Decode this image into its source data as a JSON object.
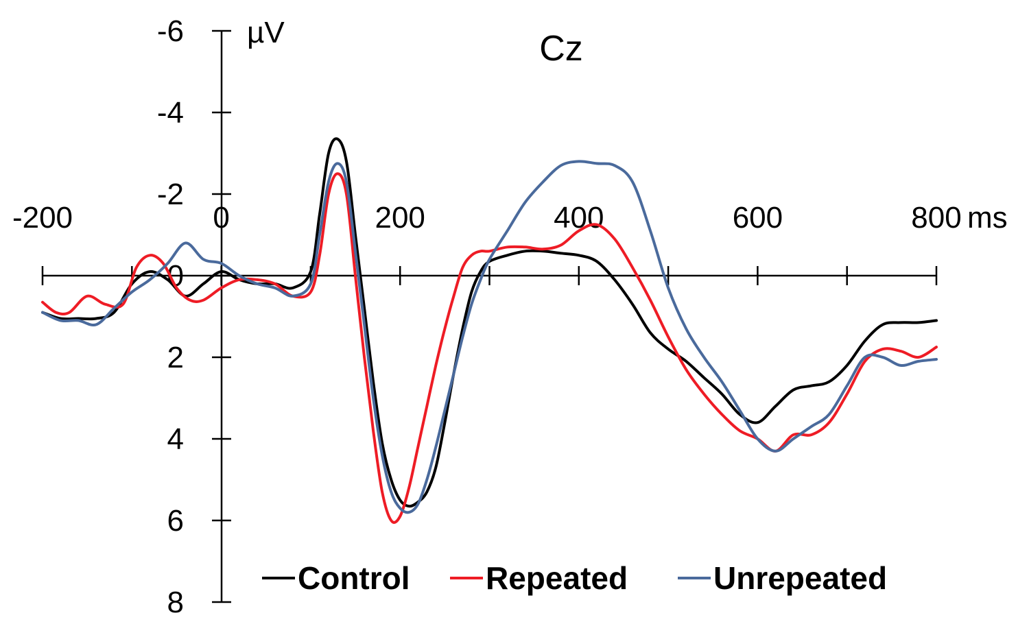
{
  "chart_data": {
    "type": "line",
    "title": "Cz",
    "xlabel": "ms",
    "ylabel": "µV",
    "xlim": [
      -200,
      800
    ],
    "ylim": [
      -6,
      8
    ],
    "y_inverted": true,
    "grid": false,
    "legend_position": "bottom",
    "x_ticks": [
      -200,
      0,
      200,
      400,
      600,
      800
    ],
    "x_tick_labels": [
      "-200",
      "0",
      "200",
      "400",
      "600",
      "800"
    ],
    "y_ticks": [
      -6,
      -4,
      -2,
      0,
      2,
      4,
      6,
      8
    ],
    "y_tick_labels": [
      "-6",
      "-4",
      "-2",
      "0",
      "2",
      "4",
      "6",
      "8"
    ],
    "series": [
      {
        "name": "Control",
        "color": "#000000",
        "x": [
          -200,
          -180,
          -160,
          -140,
          -120,
          -100,
          -80,
          -60,
          -40,
          -20,
          0,
          20,
          40,
          60,
          80,
          100,
          110,
          120,
          130,
          140,
          150,
          160,
          170,
          180,
          190,
          200,
          210,
          220,
          230,
          240,
          250,
          260,
          270,
          280,
          290,
          300,
          320,
          340,
          360,
          380,
          400,
          420,
          440,
          460,
          480,
          500,
          520,
          540,
          560,
          580,
          600,
          620,
          640,
          660,
          680,
          700,
          720,
          740,
          760,
          780,
          800
        ],
        "y": [
          0.9,
          1.05,
          1.05,
          1.05,
          0.9,
          0.2,
          -0.1,
          0.1,
          0.5,
          0.2,
          -0.1,
          0.1,
          0.2,
          0.2,
          0.3,
          -0.1,
          -1.5,
          -3.0,
          -3.35,
          -2.8,
          -1.0,
          0.8,
          2.6,
          4.1,
          5.0,
          5.5,
          5.65,
          5.55,
          5.3,
          4.7,
          3.6,
          2.4,
          1.3,
          0.4,
          -0.1,
          -0.35,
          -0.5,
          -0.6,
          -0.6,
          -0.55,
          -0.5,
          -0.35,
          0.1,
          0.7,
          1.4,
          1.8,
          2.1,
          2.5,
          2.9,
          3.4,
          3.6,
          3.2,
          2.8,
          2.7,
          2.6,
          2.2,
          1.6,
          1.2,
          1.15,
          1.15,
          1.1
        ]
      },
      {
        "name": "Repeated",
        "color": "#ee1c25",
        "x": [
          -200,
          -185,
          -170,
          -150,
          -130,
          -110,
          -95,
          -80,
          -65,
          -50,
          -35,
          -20,
          0,
          20,
          40,
          60,
          80,
          100,
          110,
          120,
          130,
          140,
          150,
          160,
          170,
          180,
          190,
          200,
          210,
          220,
          230,
          240,
          250,
          260,
          270,
          280,
          290,
          300,
          320,
          340,
          360,
          380,
          400,
          420,
          440,
          460,
          480,
          500,
          520,
          540,
          560,
          580,
          600,
          620,
          640,
          660,
          680,
          700,
          720,
          740,
          760,
          780,
          800
        ],
        "y": [
          0.65,
          0.9,
          0.9,
          0.5,
          0.7,
          0.7,
          -0.2,
          -0.5,
          -0.3,
          0.3,
          0.6,
          0.6,
          0.3,
          0.1,
          0.1,
          0.2,
          0.5,
          0.4,
          -0.5,
          -2.0,
          -2.5,
          -2.0,
          0.0,
          2.0,
          3.8,
          5.3,
          6.0,
          5.9,
          5.2,
          4.2,
          3.2,
          2.2,
          1.3,
          0.5,
          -0.2,
          -0.5,
          -0.6,
          -0.6,
          -0.7,
          -0.7,
          -0.65,
          -0.75,
          -1.1,
          -1.25,
          -0.9,
          -0.2,
          0.6,
          1.5,
          2.3,
          2.9,
          3.4,
          3.8,
          4.0,
          4.3,
          3.9,
          3.9,
          3.6,
          2.9,
          2.1,
          1.8,
          1.85,
          2.0,
          1.75
        ]
      },
      {
        "name": "Unrepeated",
        "color": "#4a6a9c",
        "x": [
          -200,
          -180,
          -160,
          -140,
          -120,
          -100,
          -80,
          -60,
          -40,
          -20,
          0,
          20,
          40,
          60,
          80,
          100,
          110,
          120,
          130,
          140,
          150,
          160,
          170,
          180,
          190,
          200,
          210,
          220,
          230,
          240,
          250,
          260,
          270,
          280,
          290,
          300,
          320,
          340,
          360,
          380,
          400,
          420,
          440,
          460,
          480,
          500,
          520,
          540,
          560,
          580,
          600,
          620,
          640,
          660,
          680,
          700,
          720,
          740,
          760,
          780,
          800
        ],
        "y": [
          0.9,
          1.1,
          1.1,
          1.2,
          0.8,
          0.4,
          0.1,
          -0.3,
          -0.8,
          -0.4,
          -0.3,
          0.0,
          0.2,
          0.3,
          0.5,
          0.2,
          -1.0,
          -2.3,
          -2.75,
          -2.3,
          -0.6,
          1.2,
          3.0,
          4.4,
          5.3,
          5.7,
          5.8,
          5.6,
          5.0,
          4.2,
          3.3,
          2.4,
          1.5,
          0.7,
          0.1,
          -0.4,
          -1.1,
          -1.8,
          -2.3,
          -2.7,
          -2.8,
          -2.75,
          -2.7,
          -2.3,
          -1.1,
          0.3,
          1.3,
          2.0,
          2.6,
          3.3,
          4.0,
          4.3,
          4.0,
          3.7,
          3.4,
          2.7,
          2.0,
          2.0,
          2.2,
          2.1,
          2.05
        ]
      }
    ]
  }
}
